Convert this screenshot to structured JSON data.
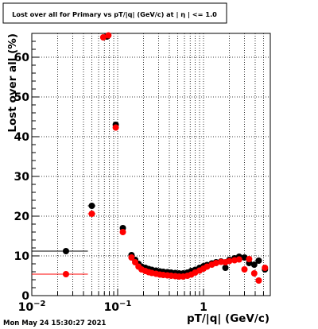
{
  "chart_data": {
    "type": "scatter",
    "title": "Lost over all for Primary vs pT/|q| (GeV/c) at | η | <= 1.0",
    "xlabel": "pT/|q| (GeV/c)",
    "ylabel": "Lost over all (%)",
    "xscale": "log",
    "xlim": [
      0.01,
      6.0
    ],
    "ylim": [
      0,
      66
    ],
    "grid": true,
    "x_ticks": [
      {
        "value": 0.01,
        "base": "10",
        "exp": "−2"
      },
      {
        "value": 0.1,
        "base": "10",
        "exp": "−1"
      },
      {
        "value": 1,
        "base": "1",
        "exp": ""
      }
    ],
    "y_ticks": [
      0,
      10,
      20,
      30,
      40,
      50,
      60
    ],
    "series": [
      {
        "color": "#000000",
        "points": [
          {
            "x": 0.025,
            "y": 11.2,
            "xlo": 0.01,
            "xhi": 0.045
          },
          {
            "x": 0.05,
            "y": 22.6,
            "xlo": 0.045,
            "xhi": 0.055
          },
          {
            "x": 0.075,
            "y": 65.2,
            "xlo": 0.07,
            "xhi": 0.08
          },
          {
            "x": 0.095,
            "y": 43.0,
            "xlo": 0.09,
            "xhi": 0.1
          },
          {
            "x": 0.115,
            "y": 17.0,
            "xlo": 0.11,
            "xhi": 0.12
          },
          {
            "x": 0.145,
            "y": 10.2
          },
          {
            "x": 0.16,
            "y": 9.0
          },
          {
            "x": 0.175,
            "y": 8.0
          },
          {
            "x": 0.19,
            "y": 7.3
          },
          {
            "x": 0.21,
            "y": 7.0
          },
          {
            "x": 0.23,
            "y": 6.7
          },
          {
            "x": 0.25,
            "y": 6.5
          },
          {
            "x": 0.28,
            "y": 6.3
          },
          {
            "x": 0.31,
            "y": 6.1
          },
          {
            "x": 0.34,
            "y": 6.0
          },
          {
            "x": 0.38,
            "y": 5.9
          },
          {
            "x": 0.42,
            "y": 5.8
          },
          {
            "x": 0.47,
            "y": 5.7
          },
          {
            "x": 0.52,
            "y": 5.6
          },
          {
            "x": 0.58,
            "y": 5.6
          },
          {
            "x": 0.65,
            "y": 5.8
          },
          {
            "x": 0.72,
            "y": 6.2
          },
          {
            "x": 0.8,
            "y": 6.5
          },
          {
            "x": 0.9,
            "y": 7.0
          },
          {
            "x": 1.0,
            "y": 7.4
          },
          {
            "x": 1.1,
            "y": 7.7
          },
          {
            "x": 1.25,
            "y": 8.1
          },
          {
            "x": 1.4,
            "y": 8.4
          },
          {
            "x": 1.6,
            "y": 8.6
          },
          {
            "x": 1.8,
            "y": 7.0
          },
          {
            "x": 2.0,
            "y": 9.0
          },
          {
            "x": 2.3,
            "y": 9.4
          },
          {
            "x": 2.6,
            "y": 9.8
          },
          {
            "x": 3.0,
            "y": 9.6
          },
          {
            "x": 3.4,
            "y": 8.2
          },
          {
            "x": 3.9,
            "y": 7.8
          },
          {
            "x": 4.4,
            "y": 8.8
          },
          {
            "x": 5.2,
            "y": 6.6
          }
        ]
      },
      {
        "color": "#ff0000",
        "points": [
          {
            "x": 0.025,
            "y": 5.4,
            "xlo": 0.01,
            "xhi": 0.045
          },
          {
            "x": 0.05,
            "y": 20.6,
            "xlo": 0.045,
            "xhi": 0.055
          },
          {
            "x": 0.068,
            "y": 65.0,
            "xlo": 0.065,
            "xhi": 0.072
          },
          {
            "x": 0.078,
            "y": 65.5
          },
          {
            "x": 0.095,
            "y": 42.3,
            "xlo": 0.09,
            "xhi": 0.1
          },
          {
            "x": 0.115,
            "y": 16.0,
            "xlo": 0.11,
            "xhi": 0.12
          },
          {
            "x": 0.145,
            "y": 9.6
          },
          {
            "x": 0.16,
            "y": 8.4
          },
          {
            "x": 0.175,
            "y": 7.3
          },
          {
            "x": 0.19,
            "y": 6.6
          },
          {
            "x": 0.21,
            "y": 6.2
          },
          {
            "x": 0.23,
            "y": 5.9
          },
          {
            "x": 0.25,
            "y": 5.7
          },
          {
            "x": 0.28,
            "y": 5.5
          },
          {
            "x": 0.31,
            "y": 5.3
          },
          {
            "x": 0.34,
            "y": 5.2
          },
          {
            "x": 0.38,
            "y": 5.1
          },
          {
            "x": 0.42,
            "y": 5.0
          },
          {
            "x": 0.47,
            "y": 4.9
          },
          {
            "x": 0.52,
            "y": 4.8
          },
          {
            "x": 0.58,
            "y": 4.8
          },
          {
            "x": 0.65,
            "y": 5.0
          },
          {
            "x": 0.72,
            "y": 5.3
          },
          {
            "x": 0.8,
            "y": 5.8
          },
          {
            "x": 0.9,
            "y": 6.3
          },
          {
            "x": 1.0,
            "y": 6.8
          },
          {
            "x": 1.1,
            "y": 7.3
          },
          {
            "x": 1.25,
            "y": 7.8
          },
          {
            "x": 1.4,
            "y": 8.2
          },
          {
            "x": 1.6,
            "y": 8.5
          },
          {
            "x": 1.8,
            "y": 8.4
          },
          {
            "x": 2.0,
            "y": 8.7
          },
          {
            "x": 2.3,
            "y": 8.9
          },
          {
            "x": 2.6,
            "y": 9.1
          },
          {
            "x": 3.0,
            "y": 6.6
          },
          {
            "x": 3.4,
            "y": 9.2
          },
          {
            "x": 3.9,
            "y": 5.6
          },
          {
            "x": 4.4,
            "y": 3.8
          },
          {
            "x": 5.2,
            "y": 7.0
          }
        ]
      }
    ]
  },
  "footer": {
    "timestamp": "Mon May 24 15:30:27 2021"
  }
}
